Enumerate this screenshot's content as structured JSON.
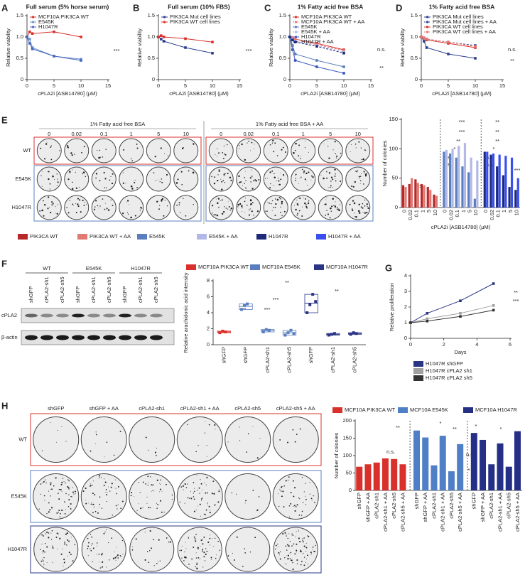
{
  "chart_data": [
    {
      "type": "line",
      "panel": "A",
      "title": "Full serum (5% horse serum)",
      "x_label": "cPLA2i [ASB14780] (μM)",
      "y_label": "Relative viability",
      "x": [
        0,
        0.5,
        1,
        5,
        10
      ],
      "xlim": [
        0,
        15
      ],
      "xticks": [
        0,
        5,
        10,
        15
      ],
      "ylim": [
        0,
        1.5
      ],
      "yticks": [
        0,
        0.5,
        {
          "value": 1,
          "label": "1.0"
        },
        1.5
      ],
      "series": [
        {
          "name": "MCF10A PIK3CA WT",
          "color": "#d9302b",
          "values": [
            1.0,
            1.12,
            1.08,
            1.12,
            1.0
          ]
        },
        {
          "name": "E545K",
          "color": "#6f93c8",
          "values": [
            1.0,
            0.95,
            0.75,
            0.55,
            0.48
          ]
        },
        {
          "name": "H1047R",
          "color": "#4a67c2",
          "values": [
            1.0,
            0.85,
            0.72,
            0.55,
            0.45
          ]
        }
      ],
      "annotations": [
        "***"
      ]
    },
    {
      "type": "line",
      "panel": "B",
      "title": "Full serum (10% FBS)",
      "x_label": "cPLA2i [ASB14780] (μM)",
      "y_label": "Relative viability",
      "x": [
        0,
        0.5,
        1,
        5,
        10
      ],
      "xlim": [
        0,
        15
      ],
      "xticks": [
        0,
        5,
        10,
        15
      ],
      "ylim": [
        0,
        1.5
      ],
      "yticks": [
        0,
        0.5,
        {
          "value": 1,
          "label": "1.0"
        },
        1.5
      ],
      "series": [
        {
          "name": "PIK3CA Mut cell lines",
          "color": "#2b3f8e",
          "values": [
            1.0,
            0.95,
            0.9,
            0.75,
            0.62
          ]
        },
        {
          "name": "PIK3CA WT cell lines",
          "color": "#d9302b",
          "values": [
            1.0,
            1.03,
            1.0,
            0.96,
            0.88
          ]
        }
      ],
      "annotations": [
        "***"
      ]
    },
    {
      "type": "line",
      "panel": "C",
      "title": "1% Fatty acid free BSA",
      "x_label": "cPLA2i [ASB14780] (μM)",
      "y_label": "Relative viability",
      "x": [
        0,
        0.5,
        1,
        5,
        10
      ],
      "xlim": [
        0,
        15
      ],
      "xticks": [
        0,
        5,
        10,
        15
      ],
      "ylim": [
        0,
        1.5
      ],
      "yticks": [
        0,
        0.5,
        {
          "value": 1,
          "label": "1.0"
        },
        1.5
      ],
      "series": [
        {
          "name": "MCF10A PIK3CA WT",
          "color": "#d9302b",
          "dashed": false,
          "values": [
            1.0,
            0.98,
            0.95,
            0.85,
            0.7
          ]
        },
        {
          "name": "MCF10A PIK3CA WT + AA",
          "color": "#e8776f",
          "dashed": true,
          "values": [
            1.0,
            0.97,
            0.95,
            0.82,
            0.68
          ]
        },
        {
          "name": "E545K",
          "color": "#5b7fbe",
          "dashed": false,
          "values": [
            1.0,
            0.8,
            0.6,
            0.45,
            0.3
          ]
        },
        {
          "name": "E545K + AA",
          "color": "#a9b3e0",
          "dashed": true,
          "values": [
            1.0,
            0.95,
            0.9,
            0.8,
            0.65
          ]
        },
        {
          "name": "H1047R",
          "color": "#3a55c0",
          "dashed": false,
          "values": [
            1.0,
            0.7,
            0.45,
            0.3,
            0.15
          ]
        },
        {
          "name": "H1047R + AA",
          "color": "#1d2a7a",
          "dashed": true,
          "values": [
            1.0,
            0.93,
            0.88,
            0.78,
            0.62
          ]
        }
      ],
      "annotations": [
        "n.s.",
        "**"
      ]
    },
    {
      "type": "line",
      "panel": "D",
      "title": "1% Fatty acid free BSA",
      "x_label": "cPLA2i [ASB14780] (μM)",
      "y_label": "Relative viability",
      "x": [
        0,
        0.5,
        1,
        5,
        10
      ],
      "xlim": [
        0,
        15
      ],
      "xticks": [
        0,
        5,
        10,
        15
      ],
      "ylim": [
        0,
        1.5
      ],
      "yticks": [
        0,
        0.5,
        {
          "value": 1,
          "label": "1.0"
        },
        1.5
      ],
      "series": [
        {
          "name": "PIK3CA Mut cell lines",
          "color": "#2b3f8e",
          "dashed": false,
          "values": [
            1.0,
            0.9,
            0.75,
            0.6,
            0.5
          ]
        },
        {
          "name": "PIK3CA Mut cell lines + AA",
          "color": "#2b3f8e",
          "dashed": true,
          "values": [
            1.0,
            0.98,
            0.95,
            0.88,
            0.8
          ]
        },
        {
          "name": "PIK3CA WT cell lines",
          "color": "#d9302b",
          "dashed": false,
          "values": [
            1.0,
            0.97,
            0.93,
            0.85,
            0.75
          ]
        },
        {
          "name": "PIK3CA WT cell lines + AA",
          "color": "#e8776f",
          "dashed": true,
          "values": [
            1.0,
            0.98,
            0.95,
            0.88,
            0.78
          ]
        }
      ],
      "annotations": [
        "n.s.",
        "**"
      ]
    },
    {
      "type": "bar",
      "x_label": "cPLA2i [ASB14780] (μM)",
      "y_label": "Number of colonies",
      "categories": [
        "0",
        "0.02",
        "0.1",
        "1",
        "5",
        "10",
        "0",
        "0.02",
        "0.1",
        "1",
        "5",
        "10",
        "0",
        "0.02",
        "0.1",
        "1",
        "5",
        "10"
      ],
      "ylim": [
        0,
        150
      ],
      "yticks": [
        0,
        50,
        100,
        150
      ],
      "series": [
        {
          "name": "PIK3CA WT",
          "color": "#b8282a",
          "values": [
            38,
            40,
            48,
            40,
            35,
            22,
            null,
            null,
            null,
            null,
            null,
            null,
            null,
            null,
            null,
            null,
            null,
            null
          ]
        },
        {
          "name": "PIK3CA WT + AA",
          "color": "#e07a72",
          "values": [
            35,
            50,
            42,
            38,
            30,
            20,
            null,
            null,
            null,
            null,
            null,
            null,
            null,
            null,
            null,
            null,
            null,
            null
          ]
        },
        {
          "name": "E545K",
          "color": "#5b7fbe",
          "values": [
            null,
            null,
            null,
            null,
            null,
            null,
            95,
            92,
            85,
            70,
            60,
            15,
            null,
            null,
            null,
            null,
            null,
            null
          ]
        },
        {
          "name": "E545K + AA",
          "color": "#b3b9e6",
          "values": [
            null,
            null,
            null,
            null,
            null,
            null,
            98,
            100,
            105,
            110,
            85,
            80,
            null,
            null,
            null,
            null,
            null,
            null
          ]
        },
        {
          "name": "H1047R",
          "color": "#1d2a7a",
          "values": [
            null,
            null,
            null,
            null,
            null,
            null,
            null,
            null,
            null,
            null,
            null,
            null,
            95,
            90,
            70,
            55,
            35,
            30
          ]
        },
        {
          "name": "H1047R + AA",
          "color": "#3a4ff0",
          "values": [
            null,
            null,
            null,
            null,
            null,
            null,
            null,
            null,
            null,
            null,
            null,
            null,
            95,
            92,
            90,
            88,
            85,
            50
          ]
        }
      ],
      "annotations": [
        "n.s.",
        "***",
        "***",
        "**",
        "*",
        "n.s.",
        "n.s.",
        "**",
        "**",
        "**",
        "*",
        "n.s.",
        "n.s.",
        "***"
      ]
    },
    {
      "type": "dot",
      "y_label": "Relative arachidonic acid intensity",
      "categories": [
        "shGFP",
        "shGFP",
        "cPLA2-sh1",
        "cPLA2-sh5",
        "shGFP",
        "cPLA2-sh1",
        "cPLA2-sh5"
      ],
      "ylim": [
        0,
        8
      ],
      "yticks": [
        0,
        2,
        4,
        6,
        8
      ],
      "series": [
        {
          "name": "MCF10A PIK3CA WT",
          "color": "#d9302b",
          "values": [
            1.6,
            null,
            null,
            null,
            null,
            null,
            null
          ],
          "points": [
            [
              1.5,
              1.7,
              1.6
            ],
            null,
            null,
            null,
            null,
            null,
            null
          ]
        },
        {
          "name": "MCF10A E545K",
          "color": "#5b7fbe",
          "values": [
            null,
            4.8,
            1.8,
            1.5,
            null,
            null,
            null
          ],
          "points": [
            null,
            [
              4.4,
              4.9,
              5.1
            ],
            [
              1.6,
              1.9,
              1.8
            ],
            [
              1.2,
              1.5,
              1.8,
              1.4
            ],
            null,
            null,
            null
          ]
        },
        {
          "name": "MCF10A H1047R",
          "color": "#2b3585",
          "values": [
            null,
            null,
            null,
            null,
            5.2,
            1.3,
            1.4
          ],
          "points": [
            null,
            null,
            null,
            null,
            [
              4.0,
              5.0,
              6.3,
              5.4
            ],
            [
              1.2,
              1.3,
              1.4
            ],
            [
              1.3,
              1.5,
              1.4
            ]
          ]
        }
      ],
      "annotations": [
        "**",
        "**",
        "***",
        "***",
        "***"
      ]
    },
    {
      "type": "line",
      "panel": "G",
      "x_label": "Days",
      "y_label": "Relative proliferation",
      "x": [
        0,
        1,
        3,
        5
      ],
      "xlim": [
        0,
        6
      ],
      "xticks": [
        0,
        2,
        4,
        6
      ],
      "ylim": [
        0,
        4
      ],
      "yticks": [
        0,
        1,
        2,
        3,
        4
      ],
      "series": [
        {
          "name": "H1047R shGFP",
          "color": "#2b3585",
          "values": [
            1.0,
            1.6,
            2.4,
            3.5
          ]
        },
        {
          "name": "H1047R cPLA2 sh1",
          "color": "#a0a0a0",
          "values": [
            1.0,
            1.25,
            1.6,
            2.1
          ]
        },
        {
          "name": "H1047R cPLA2 sh5",
          "color": "#333333",
          "values": [
            1.0,
            1.1,
            1.4,
            1.8
          ]
        }
      ],
      "annotations": [
        "**",
        "***"
      ]
    },
    {
      "type": "bar",
      "y_label": "Number of colonies",
      "categories": [
        "shGFP",
        "shGFP + AA",
        "cPLA2-sh1",
        "cPLA2-sh1 + AA",
        "cPLA2-sh5",
        "cPLA2-sh5 + AA",
        "shGFP",
        "shGFP + AA",
        "cPLA2-sh1",
        "cPLA2-sh1 + AA",
        "cPLA2-sh5",
        "cPLA2-sh5 + AA",
        "shGFP",
        "shGFP + AA",
        "cPLA2-sh1",
        "cPLA2-sh1 + AA",
        "cPLA2-sh5",
        "cPLA2-sh5 + AA"
      ],
      "ylim": [
        0,
        200
      ],
      "yticks": [
        0,
        50,
        100,
        150,
        200
      ],
      "series": [
        {
          "name": "MCF10A PIK3CA WT",
          "color": "#d9302b",
          "values": [
            68,
            75,
            80,
            92,
            90,
            75,
            null,
            null,
            null,
            null,
            null,
            null,
            null,
            null,
            null,
            null,
            null,
            null
          ]
        },
        {
          "name": "MCF10A E545K",
          "color": "#4f7fc6",
          "values": [
            null,
            null,
            null,
            null,
            null,
            null,
            172,
            152,
            72,
            157,
            55,
            133,
            null,
            null,
            null,
            null,
            null,
            null
          ]
        },
        {
          "name": "MCF10A H1047R",
          "color": "#252f86",
          "values": [
            null,
            null,
            null,
            null,
            null,
            null,
            null,
            null,
            null,
            null,
            null,
            null,
            165,
            145,
            75,
            135,
            68,
            170
          ]
        }
      ],
      "annotations": [
        "**",
        "*",
        "**",
        "n.s.",
        "*",
        "*",
        "**",
        "n.s.",
        "*",
        "*",
        "*",
        "*"
      ]
    }
  ],
  "figures": [
    {
      "panel": "E",
      "groups": [
        "1% Fatty acid free BSA",
        "1% Fatty acid free BSA + AA"
      ],
      "columns": [
        "0",
        "0.02",
        "0.1",
        "1",
        "5",
        "10"
      ],
      "rows": [
        "WT",
        "E545K",
        "H1047R"
      ]
    },
    {
      "panel": "F",
      "groups": [
        "WT",
        "E545K",
        "H1047R"
      ],
      "lanes": [
        "shGFP",
        "cPLA2-sh1",
        "cPLA2-sh5"
      ],
      "rows": [
        "cPLA2",
        "β-actin"
      ]
    },
    {
      "panel": "H",
      "columns": [
        "shGFP",
        "shGFP + AA",
        "cPLA2-sh1",
        "cPLA2-sh1 + AA",
        "cPLA2-sh5",
        "cPLA2-sh5 + AA"
      ],
      "rows": [
        "WT",
        "E545K",
        "H1047R"
      ]
    }
  ]
}
